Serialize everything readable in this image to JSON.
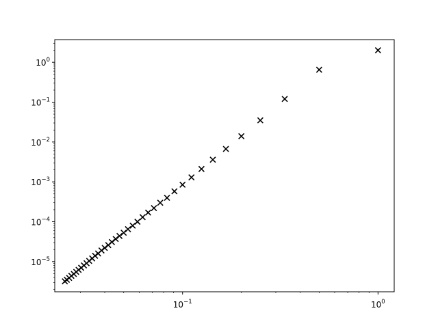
{
  "chart_data": {
    "type": "scatter",
    "title": "",
    "xlabel": "",
    "ylabel": "",
    "x_scale": "log",
    "y_scale": "log",
    "xlim": [
      0.0222,
      1.21
    ],
    "ylim": [
      1.75e-06,
      3.7
    ],
    "grid": false,
    "legend": null,
    "marker": "x",
    "colors": {
      "marker": "#000000",
      "axes": "#000000",
      "background": "#ffffff"
    },
    "x_ticks": [
      {
        "value": 0.1,
        "base": "10",
        "exp": "−1"
      },
      {
        "value": 1,
        "base": "10",
        "exp": "0"
      }
    ],
    "y_ticks": [
      {
        "value": 1e-05,
        "base": "10",
        "exp": "−5"
      },
      {
        "value": 0.0001,
        "base": "10",
        "exp": "−4"
      },
      {
        "value": 0.001,
        "base": "10",
        "exp": "−3"
      },
      {
        "value": 0.01,
        "base": "10",
        "exp": "−2"
      },
      {
        "value": 0.1,
        "base": "10",
        "exp": "−1"
      },
      {
        "value": 1,
        "base": "10",
        "exp": "0"
      }
    ],
    "series": [
      {
        "points": [
          [
            1.0,
            2.0
          ],
          [
            0.5,
            0.65
          ],
          [
            0.3333,
            0.12
          ],
          [
            0.25,
            0.035
          ],
          [
            0.2,
            0.014
          ],
          [
            0.1667,
            0.0067
          ],
          [
            0.1429,
            0.0036
          ],
          [
            0.125,
            0.0021
          ],
          [
            0.1111,
            0.0013
          ],
          [
            0.1,
            0.00085
          ],
          [
            0.0909,
            0.00058
          ],
          [
            0.0833,
            0.0004
          ],
          [
            0.0769,
            0.0003
          ],
          [
            0.0714,
            0.00022
          ],
          [
            0.0667,
            0.00017
          ],
          [
            0.0625,
            0.00013
          ],
          [
            0.0588,
            0.0001
          ],
          [
            0.0556,
            8e-05
          ],
          [
            0.0526,
            6.5e-05
          ],
          [
            0.05,
            5.3e-05
          ],
          [
            0.0476,
            4.4e-05
          ],
          [
            0.0455,
            3.7e-05
          ],
          [
            0.0435,
            3.1e-05
          ],
          [
            0.0417,
            2.6e-05
          ],
          [
            0.04,
            2.2e-05
          ],
          [
            0.0385,
            1.9e-05
          ],
          [
            0.037,
            1.6e-05
          ],
          [
            0.0357,
            1.4e-05
          ],
          [
            0.0345,
            1.2e-05
          ],
          [
            0.0333,
            1.04e-05
          ],
          [
            0.0323,
            9.1e-06
          ],
          [
            0.0313,
            8e-06
          ],
          [
            0.0303,
            7e-06
          ],
          [
            0.0294,
            6.2e-06
          ],
          [
            0.0286,
            5.5e-06
          ],
          [
            0.0278,
            4.9e-06
          ],
          [
            0.027,
            4.4e-06
          ],
          [
            0.0263,
            3.9e-06
          ],
          [
            0.0256,
            3.5e-06
          ],
          [
            0.025,
            3.2e-06
          ]
        ]
      }
    ]
  }
}
